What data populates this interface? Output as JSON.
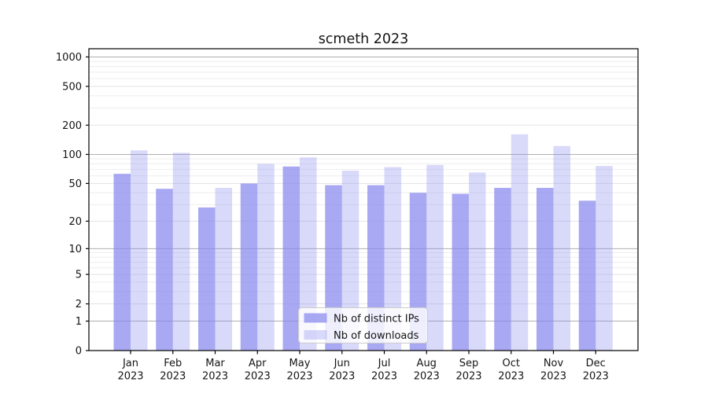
{
  "chart_data": {
    "type": "bar",
    "title": "scmeth 2023",
    "scale": "log(value+1)",
    "grid": true,
    "legend_position": "bottom-center",
    "x_tick_line2": "2023",
    "categories": [
      "Jan",
      "Feb",
      "Mar",
      "Apr",
      "May",
      "Jun",
      "Jul",
      "Aug",
      "Sep",
      "Oct",
      "Nov",
      "Dec"
    ],
    "series": [
      {
        "name": "Nb of distinct IPs",
        "color": "rgba(136,136,238,0.72)",
        "values": [
          63,
          44,
          28,
          50,
          75,
          48,
          48,
          40,
          39,
          45,
          45,
          33
        ]
      },
      {
        "name": "Nb of downloads",
        "color": "rgba(136,136,238,0.32)",
        "values": [
          110,
          104,
          45,
          80,
          93,
          68,
          74,
          78,
          65,
          161,
          122,
          76
        ]
      }
    ],
    "yticks": [
      0,
      1,
      2,
      5,
      10,
      20,
      50,
      100,
      200,
      500,
      1000
    ],
    "ylim": [
      0,
      1200
    ],
    "colors": {
      "grid_major": "#b0b0b0",
      "grid_minor_labeled": "#e3e3e3",
      "grid_minor": "#eeeeee",
      "axis": "#000000"
    }
  }
}
